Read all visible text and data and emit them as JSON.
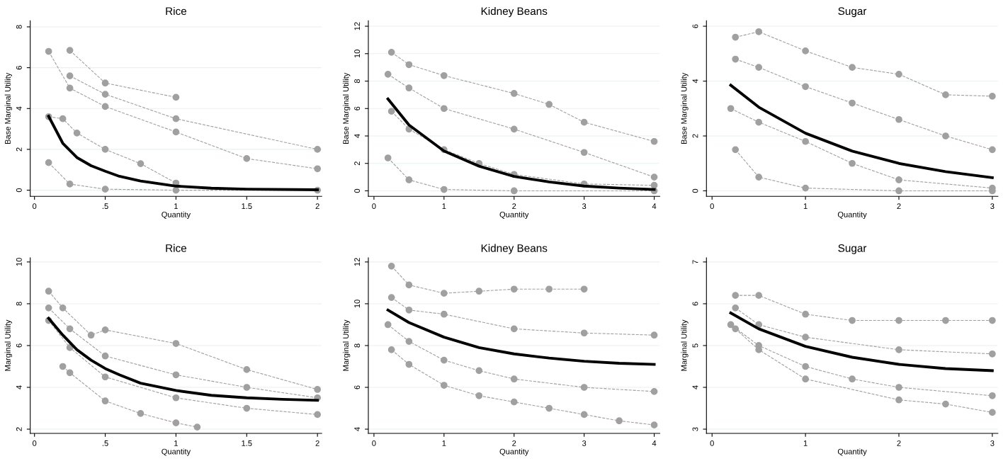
{
  "chart_data": [
    {
      "type": "line",
      "title": "Rice",
      "xlabel": "Quantity",
      "ylabel": "Base Marginal Utility",
      "xlim": [
        -0.03,
        2.03
      ],
      "xticks": [
        0,
        {
          "value": 0.5,
          "label": ".5"
        },
        1,
        1.5,
        2
      ],
      "ylim": [
        -0.3,
        8.3
      ],
      "yticks": [
        0,
        2,
        4,
        6,
        8
      ],
      "grid": "y",
      "marker": "circle",
      "line_style": "dashed",
      "series": [
        {
          "color": "#a0a0a0",
          "x": [
            0.25,
            0.5,
            1
          ],
          "values": [
            6.85,
            5.25,
            4.55
          ]
        },
        {
          "color": "#a0a0a0",
          "x": [
            0.1,
            0.25,
            0.5,
            1,
            1.5,
            2
          ],
          "values": [
            6.8,
            5.0,
            4.1,
            2.85,
            1.55,
            1.05
          ]
        },
        {
          "color": "#a0a0a0",
          "x": [
            0.25,
            0.5,
            1,
            2
          ],
          "values": [
            5.6,
            4.7,
            3.5,
            2.0
          ]
        },
        {
          "color": "#a0a0a0",
          "x": [
            0.1,
            0.2,
            0.3,
            0.5,
            0.75,
            1
          ],
          "values": [
            3.6,
            3.5,
            2.8,
            2.0,
            1.3,
            0.35
          ]
        },
        {
          "color": "#a0a0a0",
          "x": [
            0.1,
            0.25,
            0.5,
            1,
            2
          ],
          "values": [
            1.35,
            0.3,
            0.05,
            0,
            0
          ]
        },
        {
          "color": "#000000",
          "marker": "none",
          "line_style": "solid",
          "x": [
            0.1,
            0.2,
            0.3,
            0.4,
            0.5,
            0.6,
            0.75,
            1,
            1.25,
            1.5,
            2
          ],
          "values": [
            3.62,
            2.3,
            1.6,
            1.2,
            0.93,
            0.68,
            0.45,
            0.2,
            0.1,
            0.05,
            0.02
          ]
        }
      ]
    },
    {
      "type": "line",
      "title": "Kidney Beans",
      "xlabel": "Quantity",
      "ylabel": "Base Marginal Utility",
      "xlim": [
        -0.08,
        4.08
      ],
      "xticks": [
        0,
        1,
        2,
        3,
        4
      ],
      "ylim": [
        -0.4,
        12.4
      ],
      "yticks": [
        0,
        2,
        4,
        6,
        8,
        10,
        12
      ],
      "grid": "y",
      "marker": "circle",
      "line_style": "dashed",
      "series": [
        {
          "color": "#a0a0a0",
          "x": [
            0.25,
            0.5,
            1,
            2,
            2.5,
            3,
            4
          ],
          "values": [
            10.1,
            9.2,
            8.4,
            7.1,
            6.3,
            5.0,
            3.6
          ]
        },
        {
          "color": "#a0a0a0",
          "x": [
            0.2,
            0.5,
            1,
            2,
            3,
            4
          ],
          "values": [
            8.5,
            7.5,
            6.0,
            4.5,
            2.8,
            1.0
          ]
        },
        {
          "color": "#a0a0a0",
          "x": [
            0.25,
            0.5,
            1,
            1.5,
            2,
            3,
            4
          ],
          "values": [
            5.8,
            4.5,
            3,
            2,
            1.2,
            0.5,
            0.4
          ]
        },
        {
          "color": "#a0a0a0",
          "x": [
            0.2,
            0.5,
            1,
            2,
            4
          ],
          "values": [
            2.4,
            0.8,
            0.1,
            0,
            0
          ]
        },
        {
          "color": "#000000",
          "marker": "none",
          "line_style": "solid",
          "x": [
            0.2,
            0.5,
            1,
            1.5,
            2,
            2.5,
            3,
            3.5,
            4
          ],
          "values": [
            6.7,
            4.8,
            2.9,
            1.8,
            1.05,
            0.65,
            0.35,
            0.2,
            0.1
          ]
        }
      ]
    },
    {
      "type": "line",
      "title": "Sugar",
      "xlabel": "Quantity",
      "ylabel": "Base Marginal Utility",
      "xlim": [
        -0.06,
        3.06
      ],
      "xticks": [
        0,
        1,
        2,
        3
      ],
      "ylim": [
        -0.2,
        6.2
      ],
      "yticks": [
        0,
        2,
        4,
        6
      ],
      "grid": "y",
      "marker": "circle",
      "line_style": "dashed",
      "series": [
        {
          "color": "#a0a0a0",
          "x": [
            0.25,
            0.5,
            1,
            1.5,
            2,
            2.5,
            3
          ],
          "values": [
            5.6,
            5.8,
            5.1,
            4.5,
            4.25,
            3.5,
            3.45
          ]
        },
        {
          "color": "#a0a0a0",
          "x": [
            0.25,
            0.5,
            1,
            1.5,
            2,
            2.5,
            3
          ],
          "values": [
            4.8,
            4.5,
            3.8,
            3.2,
            2.6,
            2.0,
            1.5
          ]
        },
        {
          "color": "#a0a0a0",
          "x": [
            0.2,
            0.5,
            1,
            1.5,
            2,
            3
          ],
          "values": [
            3.0,
            2.5,
            1.8,
            1.0,
            0.4,
            0.1
          ]
        },
        {
          "color": "#a0a0a0",
          "x": [
            0.25,
            0.5,
            1,
            2,
            3
          ],
          "values": [
            1.5,
            0.5,
            0.1,
            0,
            0
          ]
        },
        {
          "color": "#000000",
          "marker": "none",
          "line_style": "solid",
          "x": [
            0.2,
            0.5,
            1,
            1.5,
            2,
            2.5,
            3
          ],
          "values": [
            3.85,
            3.05,
            2.1,
            1.45,
            1.0,
            0.7,
            0.48
          ]
        }
      ]
    },
    {
      "type": "line",
      "title": "Rice",
      "xlabel": "Quantity",
      "ylabel": "Marginal Utility",
      "xlim": [
        -0.03,
        2.03
      ],
      "xticks": [
        0,
        {
          "value": 0.5,
          "label": ".5"
        },
        1,
        1.5,
        2
      ],
      "ylim": [
        1.8,
        10.2
      ],
      "yticks": [
        2,
        4,
        6,
        8,
        10
      ],
      "grid": "y",
      "marker": "circle",
      "line_style": "dashed",
      "series": [
        {
          "color": "#a0a0a0",
          "x": [
            0.1,
            0.2,
            0.4,
            0.5,
            1,
            1.5,
            2
          ],
          "values": [
            8.6,
            7.8,
            6.5,
            6.75,
            6.1,
            4.85,
            3.9
          ]
        },
        {
          "color": "#a0a0a0",
          "x": [
            0.1,
            0.25,
            0.5,
            1,
            1.5,
            2
          ],
          "values": [
            7.8,
            6.8,
            5.5,
            4.6,
            4.0,
            3.5
          ]
        },
        {
          "color": "#a0a0a0",
          "x": [
            0.1,
            0.25,
            0.5,
            1,
            1.5,
            2
          ],
          "values": [
            7.2,
            5.9,
            4.5,
            3.5,
            3.0,
            2.7
          ]
        },
        {
          "color": "#a0a0a0",
          "x": [
            0.2,
            0.25,
            0.5,
            0.75,
            1,
            1.15
          ],
          "values": [
            5.0,
            4.7,
            3.35,
            2.75,
            2.3,
            2.1
          ]
        },
        {
          "color": "#000000",
          "marker": "none",
          "line_style": "solid",
          "x": [
            0.1,
            0.2,
            0.3,
            0.4,
            0.5,
            0.6,
            0.75,
            1,
            1.25,
            1.5,
            1.75,
            2
          ],
          "values": [
            7.3,
            6.5,
            5.8,
            5.3,
            4.9,
            4.6,
            4.2,
            3.85,
            3.62,
            3.5,
            3.43,
            3.38
          ]
        }
      ]
    },
    {
      "type": "line",
      "title": "Kidney Beans",
      "xlabel": "Quantity",
      "ylabel": "Marginal Utility",
      "xlim": [
        -0.08,
        4.08
      ],
      "xticks": [
        0,
        1,
        2,
        3,
        4
      ],
      "ylim": [
        3.8,
        12.2
      ],
      "yticks": [
        4,
        6,
        8,
        10,
        12
      ],
      "grid": "y",
      "marker": "circle",
      "line_style": "dashed",
      "series": [
        {
          "color": "#a0a0a0",
          "x": [
            0.25,
            0.5,
            1,
            1.5,
            2,
            2.5,
            3
          ],
          "values": [
            11.8,
            10.9,
            10.5,
            10.6,
            10.7,
            10.7,
            10.7
          ]
        },
        {
          "color": "#a0a0a0",
          "x": [
            0.25,
            0.5,
            1,
            2,
            3,
            4
          ],
          "values": [
            10.3,
            9.7,
            9.5,
            8.8,
            8.6,
            8.5
          ]
        },
        {
          "color": "#a0a0a0",
          "x": [
            0.2,
            0.5,
            1,
            1.5,
            2,
            3,
            4
          ],
          "values": [
            9.0,
            8.2,
            7.3,
            6.8,
            6.4,
            6.0,
            5.8
          ]
        },
        {
          "color": "#a0a0a0",
          "x": [
            0.25,
            0.5,
            1,
            1.5,
            2,
            2.5,
            3,
            3.5,
            4
          ],
          "values": [
            7.8,
            7.1,
            6.1,
            5.6,
            5.3,
            5.0,
            4.7,
            4.4,
            4.2
          ]
        },
        {
          "color": "#000000",
          "marker": "none",
          "line_style": "solid",
          "x": [
            0.2,
            0.5,
            1,
            1.5,
            2,
            2.5,
            3,
            3.5,
            4
          ],
          "values": [
            9.7,
            9.1,
            8.4,
            7.9,
            7.6,
            7.4,
            7.25,
            7.15,
            7.1
          ]
        }
      ]
    },
    {
      "type": "line",
      "title": "Sugar",
      "xlabel": "Quantity",
      "ylabel": "Marginal Utility",
      "xlim": [
        -0.06,
        3.06
      ],
      "xticks": [
        0,
        1,
        2,
        3
      ],
      "ylim": [
        2.9,
        7.1
      ],
      "yticks": [
        3,
        4,
        5,
        6,
        7
      ],
      "grid": "y",
      "marker": "circle",
      "line_style": "dashed",
      "series": [
        {
          "color": "#a0a0a0",
          "x": [
            0.25,
            0.5,
            1,
            1.5,
            2,
            2.5,
            3
          ],
          "values": [
            6.2,
            6.2,
            5.75,
            5.6,
            5.6,
            5.6,
            5.6
          ]
        },
        {
          "color": "#a0a0a0",
          "x": [
            0.25,
            0.5,
            1,
            2,
            3
          ],
          "values": [
            5.9,
            5.5,
            5.2,
            4.9,
            4.8
          ]
        },
        {
          "color": "#a0a0a0",
          "x": [
            0.2,
            0.5,
            1,
            1.5,
            2,
            3
          ],
          "values": [
            5.5,
            5.0,
            4.5,
            4.2,
            4.0,
            3.8
          ]
        },
        {
          "color": "#a0a0a0",
          "x": [
            0.25,
            0.5,
            1,
            2,
            2.5,
            3
          ],
          "values": [
            5.4,
            4.9,
            4.2,
            3.7,
            3.6,
            3.4
          ]
        },
        {
          "color": "#000000",
          "marker": "none",
          "line_style": "solid",
          "x": [
            0.2,
            0.5,
            1,
            1.5,
            2,
            2.5,
            3
          ],
          "values": [
            5.78,
            5.4,
            4.98,
            4.72,
            4.55,
            4.45,
            4.4
          ]
        }
      ]
    }
  ]
}
